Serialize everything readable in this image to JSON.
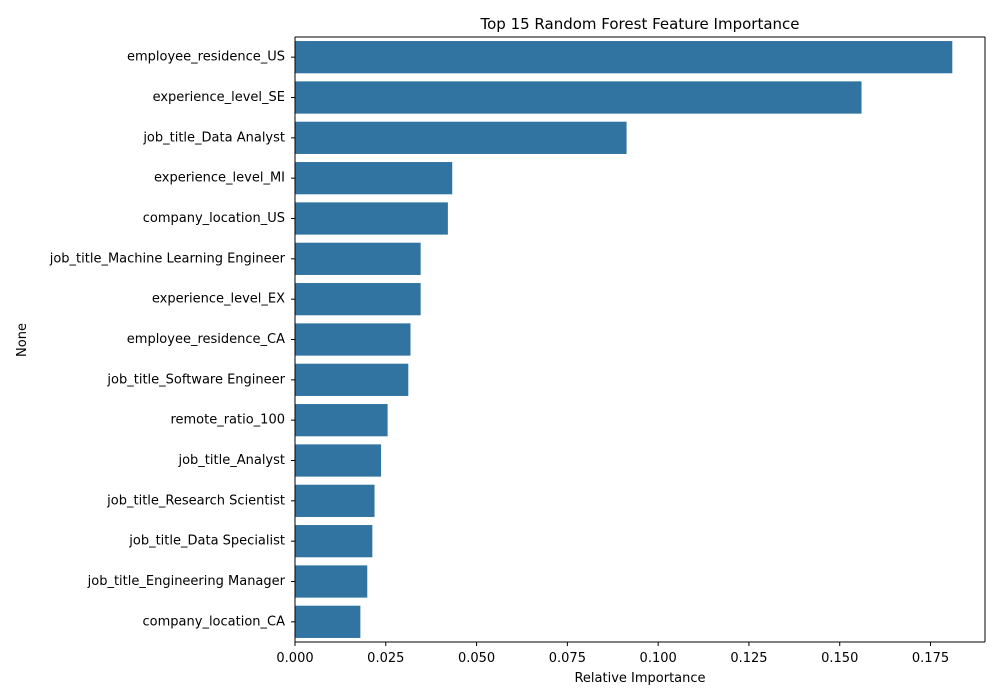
{
  "chart_data": {
    "type": "bar",
    "orientation": "horizontal",
    "title": "Top 15 Random Forest Feature Importance",
    "xlabel": "Relative Importance",
    "ylabel": "None",
    "categories": [
      "employee_residence_US",
      "experience_level_SE",
      "job_title_Data Analyst",
      "experience_level_MI",
      "company_location_US",
      "job_title_Machine Learning Engineer",
      "experience_level_EX",
      "employee_residence_CA",
      "job_title_Software Engineer",
      "remote_ratio_100",
      "job_title_Analyst",
      "job_title_Research Scientist",
      "job_title_Data Specialist",
      "job_title_Engineering Manager",
      "company_location_CA"
    ],
    "values": [
      0.181,
      0.156,
      0.0913,
      0.0433,
      0.0421,
      0.0346,
      0.0346,
      0.0318,
      0.0312,
      0.0255,
      0.0237,
      0.0219,
      0.0213,
      0.0199,
      0.018
    ],
    "xlim": [
      0,
      0.19
    ],
    "xticks": [
      0,
      0.025,
      0.05,
      0.075,
      0.1,
      0.125,
      0.15,
      0.175
    ],
    "xtick_labels": [
      "0.000",
      "0.025",
      "0.050",
      "0.075",
      "0.100",
      "0.125",
      "0.150",
      "0.175"
    ],
    "bar_color": "#3274a1",
    "grid": false,
    "legend": "none"
  }
}
